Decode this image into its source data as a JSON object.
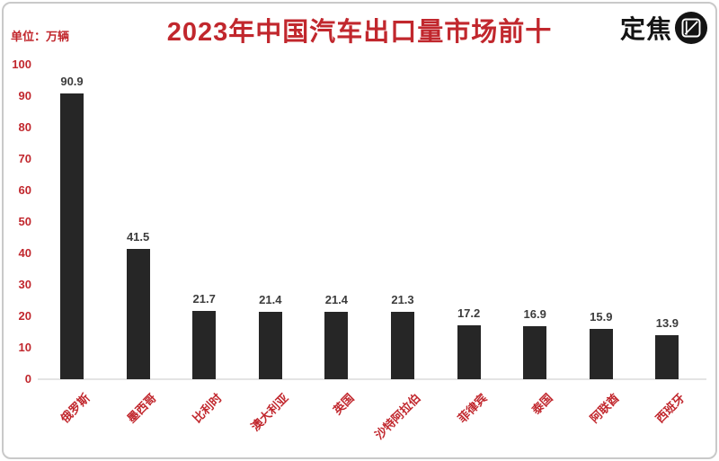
{
  "header": {
    "unit_label": "单位：万辆",
    "brand_name": "定焦",
    "brand_icon": "focus-frame-icon"
  },
  "colors": {
    "accent_red": "#c1272d",
    "bar_black": "#262626",
    "value_text": "#3c3c3c",
    "axis_line": "#e4e4e4",
    "border": "#c9c9c9"
  },
  "chart_data": {
    "type": "bar",
    "title": "2023年中国汽车出口量市场前十",
    "unit": "万辆",
    "categories": [
      "俄罗斯",
      "墨西哥",
      "比利时",
      "澳大利亚",
      "英国",
      "沙特阿拉伯",
      "菲律宾",
      "泰国",
      "阿联酋",
      "西班牙"
    ],
    "values": [
      90.9,
      41.5,
      21.7,
      21.4,
      21.4,
      21.3,
      17.2,
      16.9,
      15.9,
      13.9
    ],
    "xlabel": "",
    "ylabel": "",
    "ylim": [
      0,
      100
    ],
    "ytick_step": 10,
    "grid": false,
    "legend": false,
    "value_labels": true,
    "category_label_rotation_deg": 45
  }
}
